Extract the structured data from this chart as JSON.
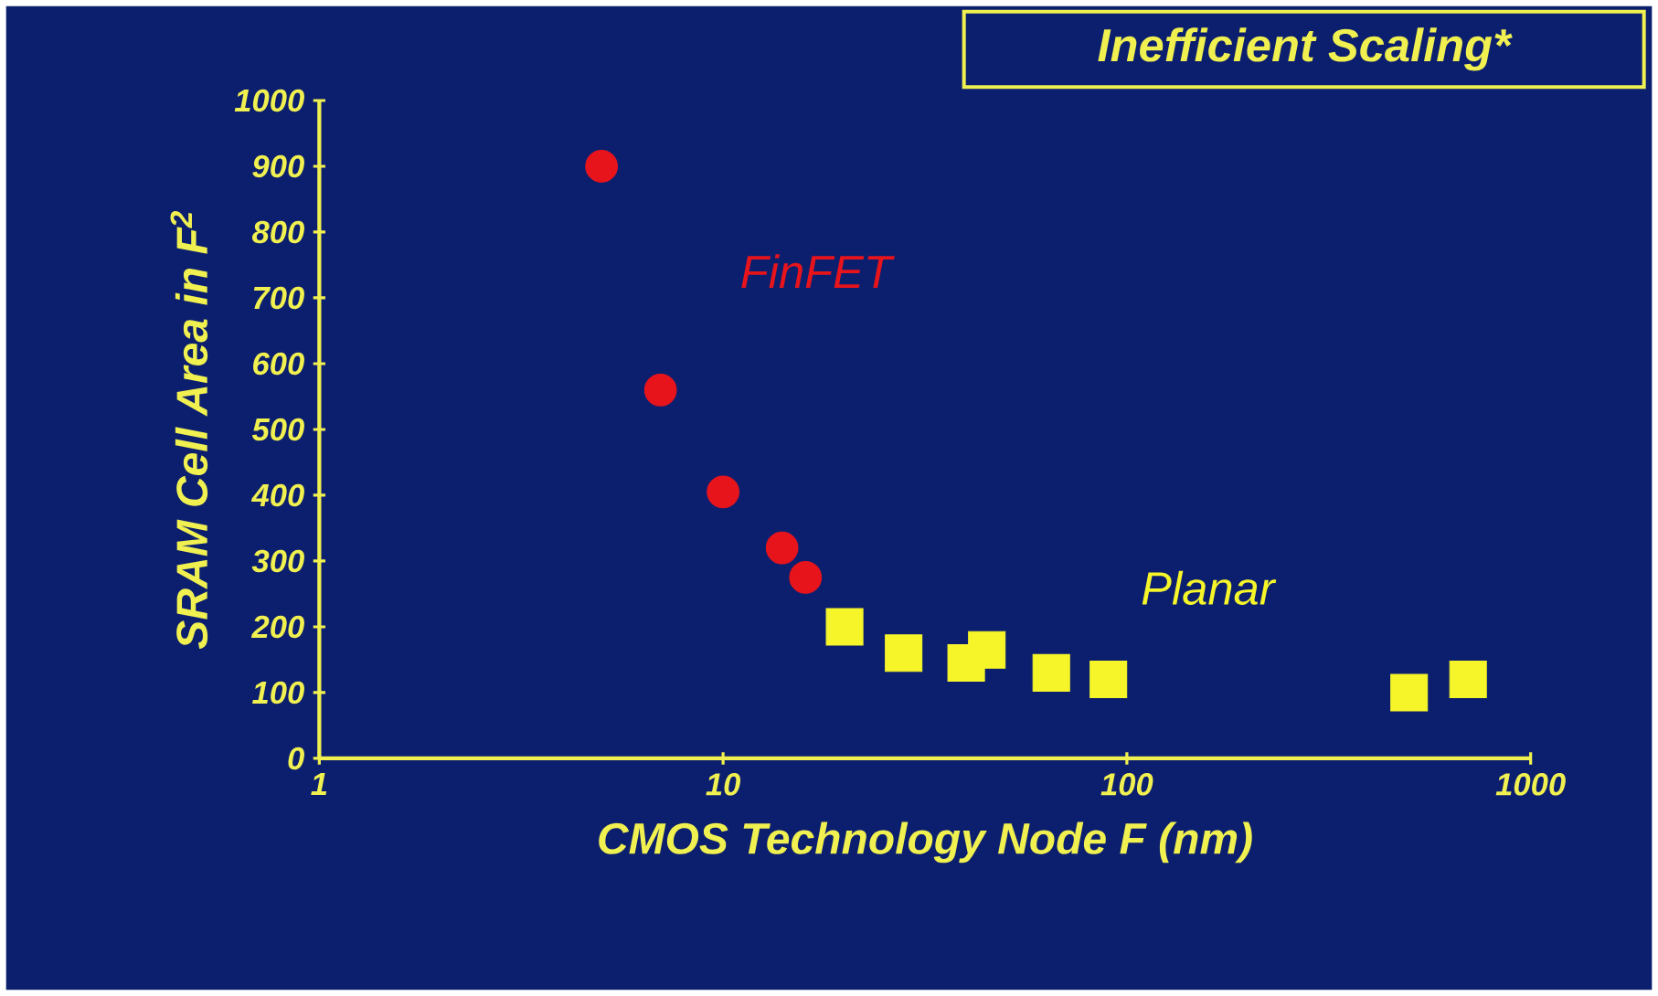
{
  "chart_data": {
    "type": "scatter",
    "title": "Inefficient Scaling*",
    "xlabel": "CMOS Technology Node F (nm)",
    "ylabel": "SRAM Cell Area in F$^{2}$",
    "log": "x",
    "xlim": [
      1,
      1000
    ],
    "xticks": [
      1,
      10,
      100,
      1000
    ],
    "ylim": [
      0,
      1000
    ],
    "yticks": [
      0,
      100,
      200,
      300,
      400,
      500,
      600,
      700,
      800,
      900,
      1000
    ],
    "grid": false,
    "legend": false,
    "series": [
      {
        "name": "FinFET",
        "color": "#e8141c",
        "marker": "circle",
        "x": [
          5,
          7,
          10,
          14,
          16
        ],
        "values": [
          900,
          560,
          405,
          320,
          275
        ]
      },
      {
        "name": "Planar",
        "color": "#f5f52a",
        "marker": "square",
        "x": [
          20,
          28,
          40,
          45,
          65,
          90,
          500,
          700
        ],
        "values": [
          200,
          160,
          145,
          165,
          130,
          120,
          100,
          120
        ]
      }
    ]
  }
}
